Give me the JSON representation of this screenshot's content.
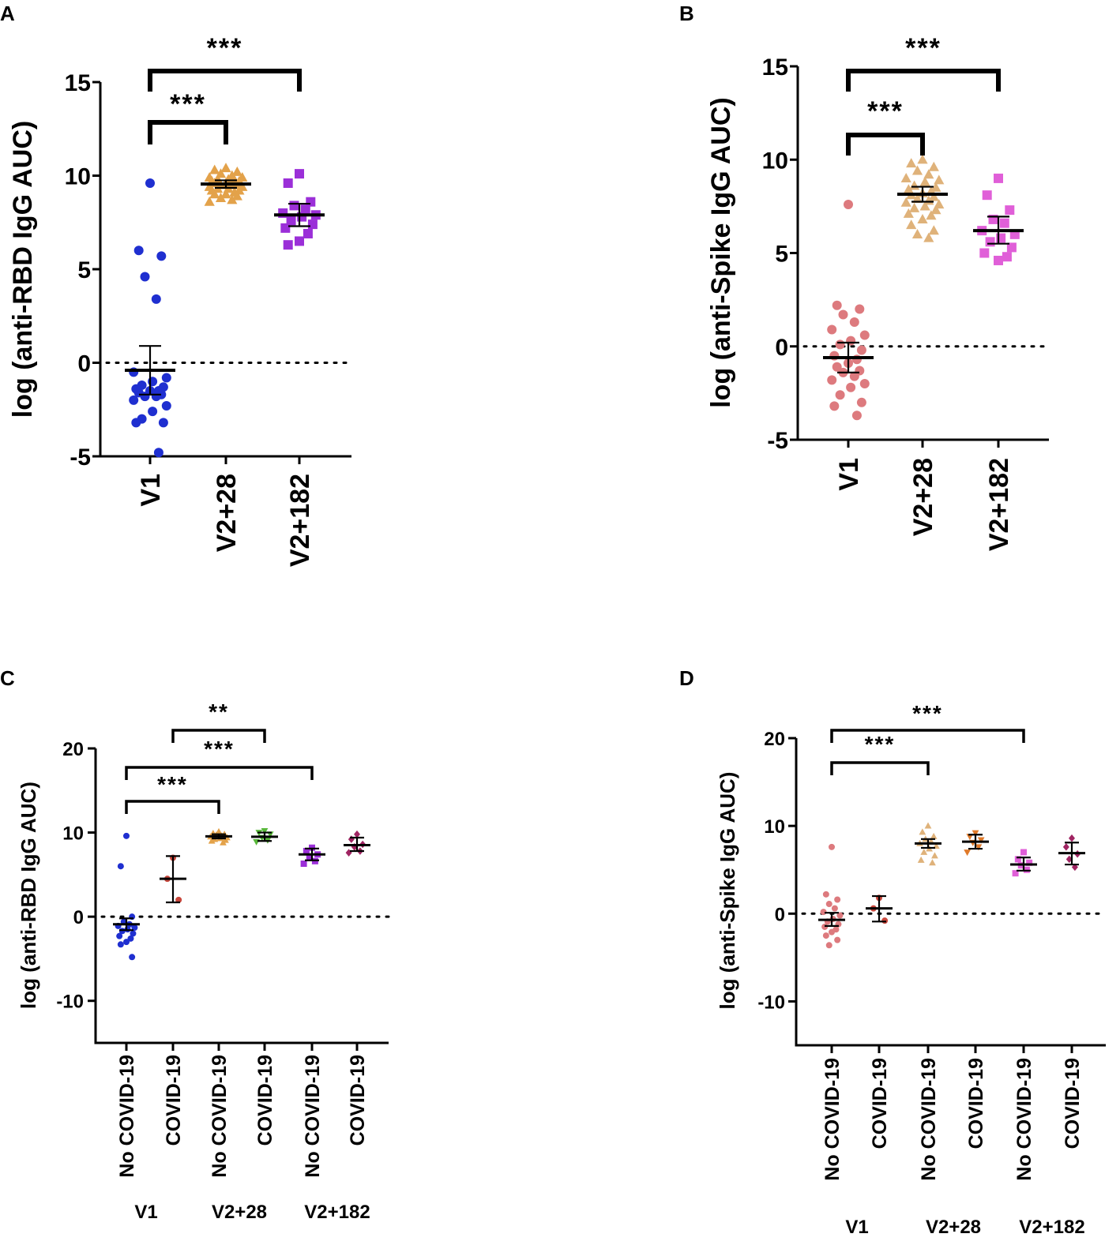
{
  "panels_labels": [
    "A",
    "B",
    "C",
    "D"
  ],
  "chart_data": [
    {
      "panel": "A",
      "type": "scatter",
      "title": "",
      "ylabel": "log (anti-RBD IgG AUC)",
      "xlabel": "",
      "ylim": [
        -5,
        15
      ],
      "yticks": [
        -5,
        0,
        5,
        10,
        15
      ],
      "categories": [
        "V1",
        "V2+28",
        "V2+182"
      ],
      "reference_line": 0,
      "series": [
        {
          "name": "V1",
          "marker": "circle",
          "color": "#1f2fd0",
          "values": [
            9.6,
            6.0,
            5.7,
            4.6,
            3.4,
            -0.5,
            -0.8,
            -1.0,
            -1.2,
            -1.3,
            -1.4,
            -1.5,
            -1.5,
            -1.6,
            -1.7,
            -1.8,
            -1.8,
            -2.0,
            -2.3,
            -2.6,
            -3.0,
            -3.2,
            -3.2,
            -4.8
          ],
          "mean": -0.4,
          "err_low": -1.7,
          "err_high": 0.9
        },
        {
          "name": "V2+28",
          "marker": "triangle",
          "color": "#e3a24a",
          "values": [
            10.4,
            10.3,
            10.2,
            10.1,
            10.0,
            9.9,
            9.9,
            9.8,
            9.8,
            9.7,
            9.7,
            9.6,
            9.6,
            9.6,
            9.5,
            9.5,
            9.5,
            9.4,
            9.4,
            9.3,
            9.3,
            9.2,
            9.2,
            9.1,
            9.0,
            9.0,
            8.9,
            8.8,
            8.7,
            8.6
          ],
          "mean": 9.55,
          "err_low": 9.35,
          "err_high": 9.75
        },
        {
          "name": "V2+182",
          "marker": "square",
          "color": "#9b2fd8",
          "values": [
            10.1,
            9.6,
            8.6,
            8.4,
            8.2,
            8.0,
            7.9,
            7.8,
            7.6,
            7.4,
            7.2,
            6.9,
            6.5,
            6.3
          ],
          "mean": 7.9,
          "err_low": 7.3,
          "err_high": 8.5
        }
      ],
      "annotations": [
        {
          "from": "V1",
          "to": "V2+28",
          "label": "***"
        },
        {
          "from": "V1",
          "to": "V2+182",
          "label": "***"
        }
      ]
    },
    {
      "panel": "B",
      "type": "scatter",
      "title": "",
      "ylabel": "log (anti-Spike IgG AUC)",
      "xlabel": "",
      "ylim": [
        -5,
        15
      ],
      "yticks": [
        -5,
        0,
        5,
        10,
        15
      ],
      "categories": [
        "V1",
        "V2+28",
        "V2+182"
      ],
      "reference_line": 0,
      "series": [
        {
          "name": "V1",
          "marker": "circle",
          "color": "#dd7a7e",
          "values": [
            7.6,
            2.2,
            2.0,
            1.7,
            1.3,
            0.9,
            0.6,
            0.3,
            0.1,
            -0.2,
            -0.5,
            -0.7,
            -0.9,
            -1.1,
            -1.3,
            -1.4,
            -1.6,
            -1.8,
            -2.0,
            -2.2,
            -2.6,
            -3.0,
            -3.2,
            -3.7
          ],
          "mean": -0.6,
          "err_low": -1.4,
          "err_high": 0.2
        },
        {
          "name": "V2+28",
          "marker": "triangle",
          "color": "#dfb27a",
          "values": [
            10.0,
            9.8,
            9.6,
            9.4,
            9.2,
            9.0,
            8.9,
            8.8,
            8.6,
            8.5,
            8.4,
            8.3,
            8.2,
            8.1,
            8.0,
            7.9,
            7.8,
            7.7,
            7.6,
            7.5,
            7.4,
            7.3,
            7.1,
            7.0,
            6.8,
            6.5,
            6.2,
            6.0,
            5.8
          ],
          "mean": 8.15,
          "err_low": 7.75,
          "err_high": 8.55
        },
        {
          "name": "V2+182",
          "marker": "square",
          "color": "#e05fd8",
          "values": [
            9.0,
            8.1,
            7.3,
            6.8,
            6.6,
            6.2,
            6.0,
            5.8,
            5.6,
            5.3,
            5.0,
            4.8,
            4.6
          ],
          "mean": 6.2,
          "err_low": 5.5,
          "err_high": 6.95
        }
      ],
      "annotations": [
        {
          "from": "V1",
          "to": "V2+28",
          "label": "***"
        },
        {
          "from": "V1",
          "to": "V2+182",
          "label": "***"
        }
      ]
    },
    {
      "panel": "C",
      "type": "scatter",
      "title": "",
      "ylabel": "log (anti-RBD IgG AUC)",
      "xlabel": "",
      "ylim": [
        -15,
        20
      ],
      "yticks": [
        -10,
        0,
        10,
        20
      ],
      "categories": [
        "No COVID-19",
        "COVID-19",
        "No COVID-19",
        "COVID-19",
        "No COVID-19",
        "COVID-19"
      ],
      "groups": [
        "V1",
        "V2+28",
        "V2+182"
      ],
      "reference_line": 0,
      "series": [
        {
          "name": "V1 No COVID-19",
          "marker": "circle",
          "color": "#1f2fd0",
          "values": [
            9.6,
            6.0,
            0.0,
            -0.6,
            -0.9,
            -1.1,
            -1.3,
            -1.5,
            -1.7,
            -2.0,
            -2.3,
            -2.6,
            -3.0,
            -3.3,
            -4.8
          ],
          "mean": -0.9,
          "err_low": -1.6,
          "err_high": -0.2
        },
        {
          "name": "V1 COVID-19",
          "marker": "circle",
          "color": "#c9473c",
          "values": [
            7.0,
            4.5,
            2.0
          ],
          "mean": 4.5,
          "err_low": 1.7,
          "err_high": 7.2
        },
        {
          "name": "V2+28 No COVID-19",
          "marker": "triangle",
          "color": "#e3a24a",
          "values": [
            10.1,
            9.9,
            9.8,
            9.7,
            9.6,
            9.5,
            9.4,
            9.3,
            9.2,
            9.1,
            9.0,
            8.8
          ],
          "mean": 9.55,
          "err_low": 9.3,
          "err_high": 9.8
        },
        {
          "name": "V2+28 COVID-19",
          "marker": "triangle-down",
          "color": "#58b83a",
          "values": [
            10.2,
            10.0,
            9.8,
            9.4,
            9.1,
            8.9
          ],
          "mean": 9.5,
          "err_low": 9.0,
          "err_high": 10.0
        },
        {
          "name": "V2+182 No COVID-19",
          "marker": "square",
          "color": "#9b2fd8",
          "values": [
            8.2,
            7.8,
            7.4,
            7.0,
            6.6,
            6.3
          ],
          "mean": 7.4,
          "err_low": 6.7,
          "err_high": 8.1
        },
        {
          "name": "V2+182 COVID-19",
          "marker": "diamond",
          "color": "#a02462",
          "values": [
            9.8,
            9.2,
            8.6,
            8.3,
            7.8,
            7.6
          ],
          "mean": 8.5,
          "err_low": 7.8,
          "err_high": 9.4
        }
      ],
      "annotations": [
        {
          "from": 0,
          "to": 2,
          "label": "***"
        },
        {
          "from": 0,
          "to": 4,
          "label": "***"
        },
        {
          "from": 1,
          "to": 3,
          "label": "**"
        }
      ]
    },
    {
      "panel": "D",
      "type": "scatter",
      "title": "",
      "ylabel": "log (anti-Spike IgG AUC)",
      "xlabel": "",
      "ylim": [
        -15,
        20
      ],
      "yticks": [
        -10,
        0,
        10,
        20
      ],
      "categories": [
        "No COVID-19",
        "COVID-19",
        "No COVID-19",
        "COVID-19",
        "No COVID-19",
        "COVID-19"
      ],
      "groups": [
        "V1",
        "V2+28",
        "V2+182"
      ],
      "reference_line": 0,
      "series": [
        {
          "name": "V1 No COVID-19",
          "marker": "circle",
          "color": "#dd7a7e",
          "values": [
            7.6,
            2.2,
            1.6,
            1.1,
            0.6,
            0.2,
            -0.2,
            -0.6,
            -0.9,
            -1.2,
            -1.5,
            -1.8,
            -2.1,
            -2.5,
            -3.0,
            -3.6
          ],
          "mean": -0.7,
          "err_low": -1.4,
          "err_high": 0.1
        },
        {
          "name": "V1 COVID-19",
          "marker": "circle",
          "color": "#c9473c",
          "values": [
            1.8,
            0.6,
            -0.8
          ],
          "mean": 0.6,
          "err_low": -0.9,
          "err_high": 2.0
        },
        {
          "name": "V2+28 No COVID-19",
          "marker": "triangle",
          "color": "#dfb27a",
          "values": [
            10.0,
            9.3,
            8.8,
            8.5,
            8.2,
            8.0,
            7.7,
            7.4,
            7.0,
            6.6,
            6.1,
            5.8
          ],
          "mean": 8.0,
          "err_low": 7.5,
          "err_high": 8.5
        },
        {
          "name": "V2+28 COVID-19",
          "marker": "triangle-down",
          "color": "#e07a2a",
          "values": [
            9.2,
            8.8,
            8.4,
            8.1,
            7.6,
            7.0
          ],
          "mean": 8.2,
          "err_low": 7.4,
          "err_high": 9.0
        },
        {
          "name": "V2+182 No COVID-19",
          "marker": "square",
          "color": "#e05fd8",
          "values": [
            7.0,
            6.2,
            5.8,
            5.5,
            5.0,
            4.6
          ],
          "mean": 5.6,
          "err_low": 4.9,
          "err_high": 6.4
        },
        {
          "name": "V2+182 COVID-19",
          "marker": "diamond",
          "color": "#a02462",
          "values": [
            8.6,
            7.6,
            6.8,
            6.2,
            5.3
          ],
          "mean": 6.9,
          "err_low": 5.6,
          "err_high": 8.1
        }
      ],
      "annotations": [
        {
          "from": 0,
          "to": 2,
          "label": "***"
        },
        {
          "from": 0,
          "to": 4,
          "label": "***"
        }
      ]
    }
  ]
}
